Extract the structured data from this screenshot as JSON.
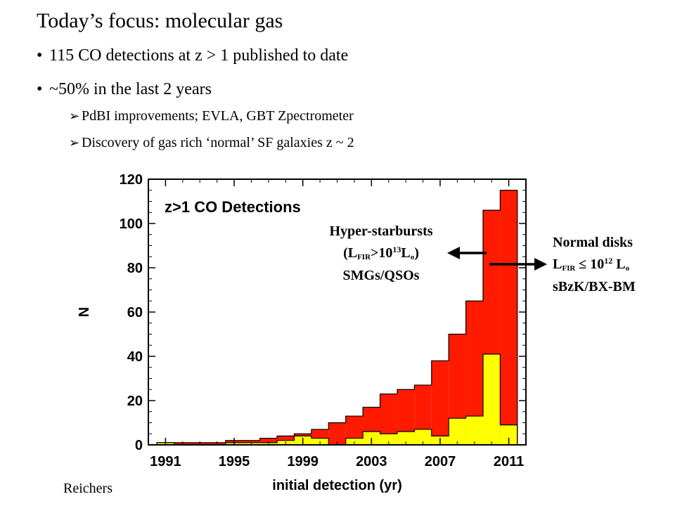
{
  "slide": {
    "title": "Today’s focus: molecular gas",
    "bullets": [
      "115 CO detections at z > 1 published to date",
      "~50% in the last 2 years"
    ],
    "subbullets": [
      "PdBI improvements;  EVLA, GBT Zpectrometer",
      "Discovery of gas rich ‘normal’ SF galaxies z ~ 2"
    ],
    "credit": "Reichers"
  },
  "annotations": {
    "hyper": {
      "line1": "Hyper-starbursts",
      "l_prefix": "(L",
      "l_sub": "FIR",
      "gt": ">10",
      "exp": "13",
      "l": "L",
      "o": "o",
      "close": ")",
      "line3": "SMGs/QSOs"
    },
    "normal": {
      "line1": "Normal disks",
      "l": "L",
      "l_sub": "FIR",
      "le": " ≤ 10",
      "exp": "12",
      "l2": " L",
      "o": "o",
      "line3": "sBzK/BX-BM"
    }
  },
  "colors": {
    "total": "#ff1a00",
    "normal": "#ffff00",
    "outline": "#000000"
  },
  "chart_data": {
    "type": "bar",
    "title": "z>1 CO Detections",
    "xlabel": "initial detection (yr)",
    "ylabel": "N",
    "xlim": [
      1990,
      2012
    ],
    "ylim": [
      0,
      120
    ],
    "xticks": [
      1991,
      1995,
      1999,
      2003,
      2007,
      2011
    ],
    "yticks": [
      0,
      20,
      40,
      60,
      80,
      100,
      120
    ],
    "x": [
      1991,
      1992,
      1993,
      1994,
      1995,
      1996,
      1997,
      1998,
      1999,
      2000,
      2001,
      2002,
      2003,
      2004,
      2005,
      2006,
      2007,
      2008,
      2009,
      2010,
      2011
    ],
    "series": [
      {
        "name": "Hyper-starbursts (total)",
        "values": [
          1,
          1,
          1,
          1,
          2,
          2,
          3,
          4,
          5,
          7,
          10,
          13,
          17,
          23,
          25,
          27,
          38,
          50,
          65,
          106,
          115
        ]
      },
      {
        "name": "Normal disks",
        "values": [
          1,
          0,
          0,
          0,
          1,
          1,
          1,
          2,
          4,
          3,
          0,
          3,
          6,
          5,
          6,
          7,
          4,
          12,
          13,
          41,
          9
        ]
      }
    ]
  }
}
